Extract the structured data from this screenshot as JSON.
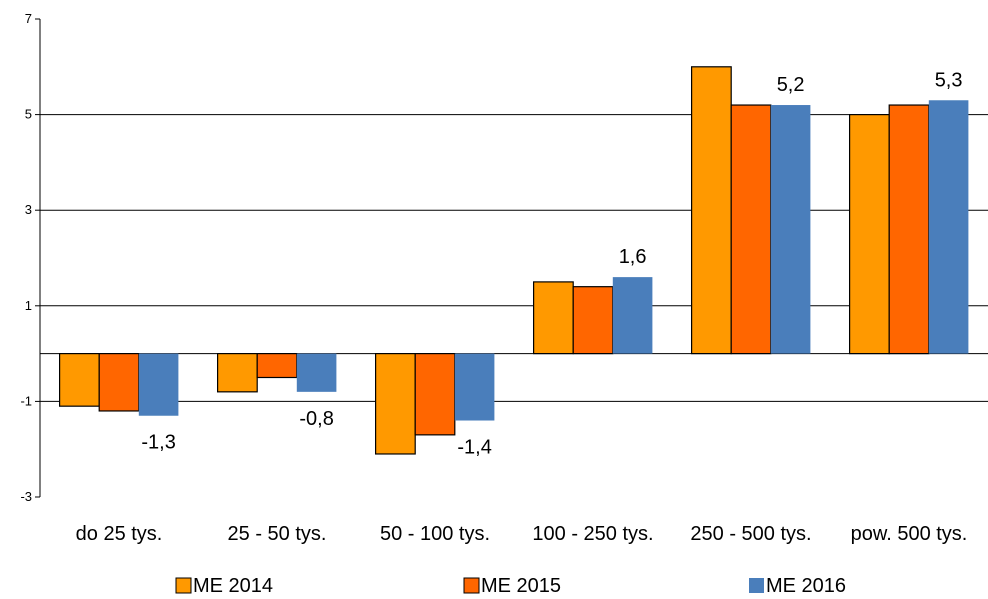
{
  "chart_data": {
    "type": "bar",
    "categories": [
      "do 25 tys.",
      "25 - 50 tys.",
      "50 - 100 tys.",
      "100 - 250 tys.",
      "250 - 500 tys.",
      "pow. 500 tys."
    ],
    "series": [
      {
        "name": "ME 2014",
        "color": "#FF9900",
        "values": [
          -1.1,
          -0.8,
          -2.1,
          1.5,
          6.0,
          5.0
        ]
      },
      {
        "name": "ME 2015",
        "color": "#FF6600",
        "values": [
          -1.2,
          -0.5,
          -1.7,
          1.4,
          5.2,
          5.2
        ]
      },
      {
        "name": "ME 2016",
        "color": "#4A7EBB",
        "values": [
          -1.3,
          -0.8,
          -1.4,
          1.6,
          5.2,
          5.3
        ]
      }
    ],
    "data_labels": [
      "-1,3",
      "-0,8",
      "-1,4",
      "1,6",
      "5,2",
      "5,3"
    ],
    "y_ticks": [
      7,
      5,
      3,
      1,
      -1,
      -3
    ],
    "y_tick_labels": [
      "7",
      "5",
      "3",
      "1",
      "-1",
      "-3"
    ],
    "ylim": [
      -3,
      7
    ],
    "gridlines": [
      1,
      3,
      5,
      -1
    ],
    "legend_position": "bottom",
    "title": "",
    "xlabel": "",
    "ylabel": ""
  }
}
